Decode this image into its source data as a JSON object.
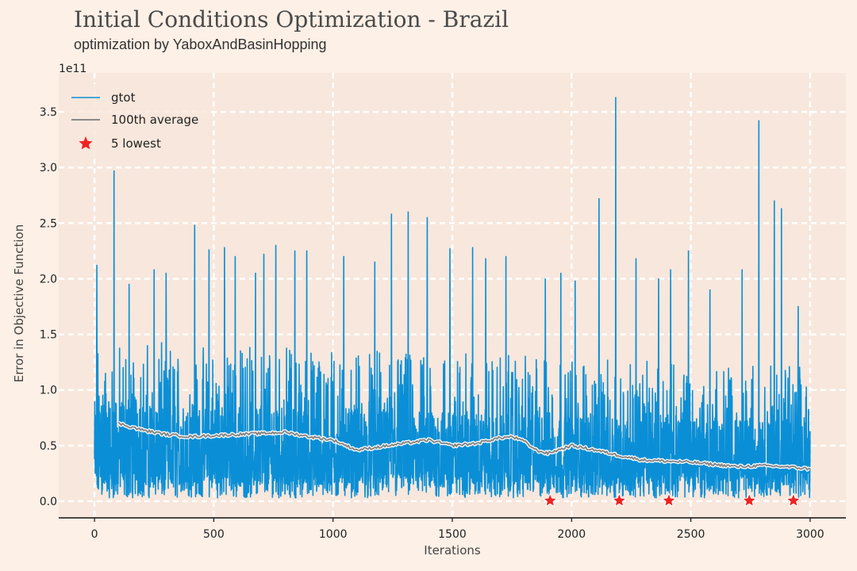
{
  "title": "Initial Conditions Optimization - Brazil",
  "subtitle": "optimization by YaboxAndBasinHopping",
  "colors": {
    "background": "#fdf0e6",
    "plot_area": "#f8e7dc",
    "grid": "#ffffff",
    "gtot": "#0a8fd6",
    "average": "#888888",
    "lowest": "#ef2222"
  },
  "chart_data": {
    "type": "line",
    "title": "Initial Conditions Optimization - Brazil",
    "subtitle": "optimization by YaboxAndBasinHopping",
    "xlabel": "Iterations",
    "ylabel": "Error in Objective Function",
    "y_scale_label": "1e11",
    "xlim": [
      -150,
      3150
    ],
    "ylim": [
      -0.15,
      3.85
    ],
    "xticks": [
      0,
      500,
      1000,
      1500,
      2000,
      2500,
      3000
    ],
    "xtick_labels": [
      "0",
      "500",
      "1000",
      "1500",
      "2000",
      "2500",
      "3000"
    ],
    "yticks": [
      0.0,
      0.5,
      1.0,
      1.5,
      2.0,
      2.5,
      3.0,
      3.5
    ],
    "ytick_labels": [
      "0.0",
      "0.5",
      "1.0",
      "1.5",
      "2.0",
      "2.5",
      "3.0",
      "3.5"
    ],
    "grid": true,
    "legend_position": "upper-left",
    "legend": [
      "gtot",
      "100th average",
      "5 lowest"
    ],
    "series": [
      {
        "name": "gtot",
        "kind": "noisy-line",
        "n_points": 3000,
        "typical_range": [
          0.03,
          1.45
        ],
        "spikes": [
          {
            "x": 10,
            "y": 2.12
          },
          {
            "x": 82,
            "y": 2.97
          },
          {
            "x": 145,
            "y": 1.95
          },
          {
            "x": 250,
            "y": 2.08
          },
          {
            "x": 300,
            "y": 2.05
          },
          {
            "x": 420,
            "y": 2.48
          },
          {
            "x": 480,
            "y": 2.26
          },
          {
            "x": 545,
            "y": 2.28
          },
          {
            "x": 590,
            "y": 2.2
          },
          {
            "x": 675,
            "y": 2.05
          },
          {
            "x": 710,
            "y": 2.22
          },
          {
            "x": 760,
            "y": 2.3
          },
          {
            "x": 840,
            "y": 2.25
          },
          {
            "x": 890,
            "y": 2.25
          },
          {
            "x": 1045,
            "y": 2.2
          },
          {
            "x": 1175,
            "y": 2.15
          },
          {
            "x": 1245,
            "y": 2.58
          },
          {
            "x": 1315,
            "y": 2.6
          },
          {
            "x": 1395,
            "y": 2.55
          },
          {
            "x": 1490,
            "y": 2.27
          },
          {
            "x": 1585,
            "y": 2.28
          },
          {
            "x": 1640,
            "y": 2.18
          },
          {
            "x": 1725,
            "y": 2.2
          },
          {
            "x": 1890,
            "y": 2.0
          },
          {
            "x": 1955,
            "y": 2.05
          },
          {
            "x": 2015,
            "y": 1.98
          },
          {
            "x": 2115,
            "y": 2.72
          },
          {
            "x": 2185,
            "y": 3.63
          },
          {
            "x": 2270,
            "y": 2.18
          },
          {
            "x": 2365,
            "y": 2.0
          },
          {
            "x": 2415,
            "y": 2.08
          },
          {
            "x": 2490,
            "y": 2.25
          },
          {
            "x": 2580,
            "y": 1.9
          },
          {
            "x": 2715,
            "y": 2.08
          },
          {
            "x": 2785,
            "y": 3.42
          },
          {
            "x": 2850,
            "y": 2.7
          },
          {
            "x": 2880,
            "y": 2.63
          },
          {
            "x": 2950,
            "y": 1.75
          }
        ]
      },
      {
        "name": "100th average",
        "kind": "line",
        "x": [
          100,
          200,
          300,
          400,
          500,
          600,
          700,
          800,
          900,
          1000,
          1100,
          1200,
          1300,
          1400,
          1500,
          1600,
          1700,
          1750,
          1800,
          1850,
          1900,
          2000,
          2100,
          2200,
          2300,
          2400,
          2500,
          2600,
          2700,
          2800,
          2900,
          3000
        ],
        "y": [
          0.7,
          0.64,
          0.6,
          0.58,
          0.59,
          0.6,
          0.61,
          0.62,
          0.58,
          0.55,
          0.46,
          0.49,
          0.52,
          0.55,
          0.5,
          0.52,
          0.57,
          0.58,
          0.54,
          0.46,
          0.43,
          0.5,
          0.46,
          0.41,
          0.37,
          0.36,
          0.35,
          0.33,
          0.31,
          0.32,
          0.31,
          0.29
        ]
      },
      {
        "name": "5 lowest",
        "kind": "markers",
        "x": [
          1910,
          2200,
          2408,
          2745,
          2930
        ],
        "y": [
          0.005,
          0.005,
          0.005,
          0.005,
          0.005
        ]
      }
    ]
  }
}
